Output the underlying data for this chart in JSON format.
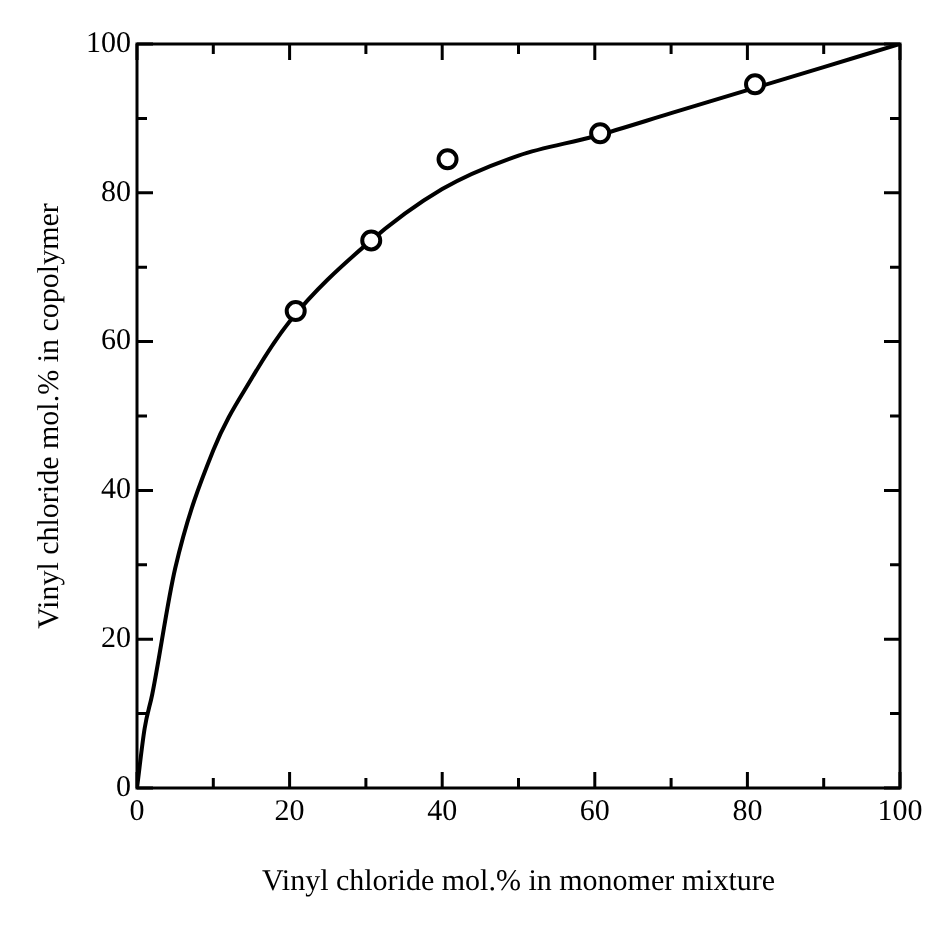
{
  "chart_data": {
    "type": "scatter",
    "xlabel": "Vinyl chloride mol.% in monomer mixture",
    "ylabel": "Vinyl chloride mol.% in copolymer",
    "xlim": [
      0,
      100
    ],
    "ylim": [
      0,
      100
    ],
    "xticks": [
      0,
      {
        "value": 10,
        "label": null
      },
      20,
      {
        "value": 30,
        "label": null
      },
      40,
      {
        "value": 50,
        "label": null
      },
      60,
      {
        "value": 70,
        "label": null
      },
      80,
      {
        "value": 90,
        "label": null
      },
      100
    ],
    "yticks": [
      0,
      {
        "value": 10,
        "label": null
      },
      20,
      {
        "value": 30,
        "label": null
      },
      40,
      {
        "value": 50,
        "label": null
      },
      60,
      {
        "value": 70,
        "label": null
      },
      80,
      {
        "value": 90,
        "label": null
      },
      100
    ],
    "grid": false,
    "legend": false,
    "series": [
      {
        "color": "#000000",
        "marker": "circle",
        "x": [
          20.8,
          30.7,
          40.7,
          60.7,
          81.0
        ],
        "values": [
          64.1,
          73.6,
          84.5,
          88.0,
          94.6
        ]
      },
      {
        "type": "line",
        "color": "#000000",
        "marker": "none",
        "line_style": "solid",
        "x": [
          0,
          1,
          2,
          5,
          10,
          15,
          20,
          30,
          40,
          50,
          60,
          70,
          80,
          90,
          100
        ],
        "values": [
          0,
          8,
          12.6,
          29.5,
          45.4,
          55,
          62.7,
          73,
          80.5,
          85,
          87.6,
          90.7,
          93.8,
          96.9,
          100
        ]
      }
    ]
  }
}
